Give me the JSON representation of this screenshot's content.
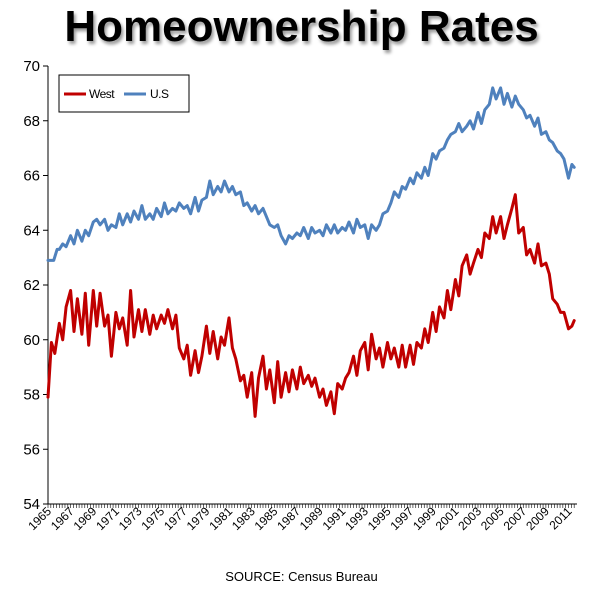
{
  "chart_data": {
    "type": "line",
    "title": "Homeownership Rates",
    "source": "SOURCE: Census Bureau",
    "ylim": [
      54,
      70
    ],
    "yticks": [
      54,
      56,
      58,
      60,
      62,
      64,
      66,
      68,
      70
    ],
    "xlim": [
      1965,
      2011.75
    ],
    "xticks": [
      1965,
      1967,
      1969,
      1971,
      1973,
      1975,
      1977,
      1979,
      1981,
      1983,
      1985,
      1987,
      1989,
      1991,
      1993,
      1995,
      1997,
      1999,
      2001,
      2003,
      2005,
      2007,
      2009,
      2011
    ],
    "grid": false,
    "legend_position": "top-left",
    "series": [
      {
        "name": "West",
        "color": "#c00000",
        "points": [
          [
            1965,
            57.9
          ],
          [
            1965.3,
            59.9
          ],
          [
            1965.6,
            59.5
          ],
          [
            1966,
            60.6
          ],
          [
            1966.3,
            60.0
          ],
          [
            1966.6,
            61.2
          ],
          [
            1967,
            61.8
          ],
          [
            1967.3,
            60.3
          ],
          [
            1967.6,
            61.5
          ],
          [
            1968,
            60.2
          ],
          [
            1968.3,
            61.7
          ],
          [
            1968.6,
            59.8
          ],
          [
            1969,
            61.8
          ],
          [
            1969.3,
            60.5
          ],
          [
            1969.6,
            61.7
          ],
          [
            1970,
            60.5
          ],
          [
            1970.3,
            60.9
          ],
          [
            1970.6,
            59.4
          ],
          [
            1971,
            61.0
          ],
          [
            1971.3,
            60.4
          ],
          [
            1971.6,
            60.8
          ],
          [
            1972,
            59.8
          ],
          [
            1972.3,
            61.8
          ],
          [
            1972.6,
            60.1
          ],
          [
            1973,
            61.1
          ],
          [
            1973.3,
            60.3
          ],
          [
            1973.6,
            61.1
          ],
          [
            1974,
            60.2
          ],
          [
            1974.3,
            60.9
          ],
          [
            1974.6,
            60.4
          ],
          [
            1975,
            60.9
          ],
          [
            1975.3,
            60.6
          ],
          [
            1975.6,
            61.1
          ],
          [
            1976,
            60.4
          ],
          [
            1976.3,
            60.9
          ],
          [
            1976.6,
            59.7
          ],
          [
            1977,
            59.3
          ],
          [
            1977.3,
            59.8
          ],
          [
            1977.6,
            58.7
          ],
          [
            1978,
            59.6
          ],
          [
            1978.3,
            58.8
          ],
          [
            1978.6,
            59.4
          ],
          [
            1979,
            60.5
          ],
          [
            1979.3,
            59.5
          ],
          [
            1979.6,
            60.3
          ],
          [
            1980,
            59.3
          ],
          [
            1980.3,
            60.1
          ],
          [
            1980.6,
            59.8
          ],
          [
            1981,
            60.8
          ],
          [
            1981.3,
            59.7
          ],
          [
            1981.6,
            59.3
          ],
          [
            1982,
            58.5
          ],
          [
            1982.3,
            58.7
          ],
          [
            1982.6,
            57.9
          ],
          [
            1983,
            58.8
          ],
          [
            1983.3,
            57.2
          ],
          [
            1983.6,
            58.6
          ],
          [
            1984,
            59.4
          ],
          [
            1984.3,
            58.2
          ],
          [
            1984.6,
            58.9
          ],
          [
            1985,
            57.7
          ],
          [
            1985.3,
            59.2
          ],
          [
            1985.6,
            57.9
          ],
          [
            1986,
            58.8
          ],
          [
            1986.3,
            58.1
          ],
          [
            1986.6,
            58.9
          ],
          [
            1987,
            58.2
          ],
          [
            1987.3,
            59.0
          ],
          [
            1987.6,
            58.4
          ],
          [
            1988,
            58.7
          ],
          [
            1988.3,
            58.3
          ],
          [
            1988.6,
            58.6
          ],
          [
            1989,
            57.9
          ],
          [
            1989.3,
            58.2
          ],
          [
            1989.6,
            57.6
          ],
          [
            1990,
            58.1
          ],
          [
            1990.3,
            57.3
          ],
          [
            1990.6,
            58.4
          ],
          [
            1991,
            58.2
          ],
          [
            1991.3,
            58.6
          ],
          [
            1991.6,
            58.8
          ],
          [
            1992,
            59.4
          ],
          [
            1992.3,
            58.7
          ],
          [
            1992.6,
            59.6
          ],
          [
            1993,
            59.9
          ],
          [
            1993.3,
            58.9
          ],
          [
            1993.6,
            60.2
          ],
          [
            1994,
            59.3
          ],
          [
            1994.3,
            59.7
          ],
          [
            1994.6,
            59.0
          ],
          [
            1995,
            59.9
          ],
          [
            1995.3,
            59.3
          ],
          [
            1995.6,
            59.7
          ],
          [
            1996,
            59.0
          ],
          [
            1996.3,
            59.8
          ],
          [
            1996.6,
            59.0
          ],
          [
            1997,
            59.8
          ],
          [
            1997.3,
            59.1
          ],
          [
            1997.6,
            59.9
          ],
          [
            1998,
            59.7
          ],
          [
            1998.3,
            60.4
          ],
          [
            1998.6,
            59.9
          ],
          [
            1999,
            61.0
          ],
          [
            1999.3,
            60.3
          ],
          [
            1999.6,
            61.2
          ],
          [
            2000,
            60.8
          ],
          [
            2000.3,
            61.8
          ],
          [
            2000.6,
            61.1
          ],
          [
            2001,
            62.2
          ],
          [
            2001.3,
            61.6
          ],
          [
            2001.6,
            62.7
          ],
          [
            2002,
            63.1
          ],
          [
            2002.3,
            62.4
          ],
          [
            2002.6,
            62.8
          ],
          [
            2003,
            63.3
          ],
          [
            2003.3,
            63.0
          ],
          [
            2003.6,
            63.9
          ],
          [
            2004,
            63.7
          ],
          [
            2004.3,
            64.5
          ],
          [
            2004.6,
            63.9
          ],
          [
            2005,
            64.5
          ],
          [
            2005.3,
            63.7
          ],
          [
            2005.6,
            64.2
          ],
          [
            2006,
            64.8
          ],
          [
            2006.3,
            65.3
          ],
          [
            2006.6,
            63.9
          ],
          [
            2007,
            64.1
          ],
          [
            2007.3,
            63.1
          ],
          [
            2007.6,
            63.3
          ],
          [
            2008,
            62.8
          ],
          [
            2008.3,
            63.5
          ],
          [
            2008.6,
            62.7
          ],
          [
            2009,
            62.8
          ],
          [
            2009.3,
            62.4
          ],
          [
            2009.6,
            61.5
          ],
          [
            2010,
            61.3
          ],
          [
            2010.3,
            61.0
          ],
          [
            2010.6,
            61.0
          ],
          [
            2011,
            60.4
          ],
          [
            2011.3,
            60.5
          ],
          [
            2011.5,
            60.7
          ]
        ]
      },
      {
        "name": "U.S",
        "color": "#4f81bd",
        "points": [
          [
            1965,
            62.9
          ],
          [
            1965.5,
            62.9
          ],
          [
            1965.8,
            63.3
          ],
          [
            1966,
            63.3
          ],
          [
            1966.3,
            63.5
          ],
          [
            1966.6,
            63.4
          ],
          [
            1967,
            63.8
          ],
          [
            1967.3,
            63.5
          ],
          [
            1967.6,
            64.0
          ],
          [
            1968,
            63.6
          ],
          [
            1968.3,
            64.0
          ],
          [
            1968.6,
            63.8
          ],
          [
            1969,
            64.3
          ],
          [
            1969.3,
            64.4
          ],
          [
            1969.6,
            64.2
          ],
          [
            1970,
            64.4
          ],
          [
            1970.3,
            64.0
          ],
          [
            1970.6,
            64.2
          ],
          [
            1971,
            64.1
          ],
          [
            1971.3,
            64.6
          ],
          [
            1971.6,
            64.2
          ],
          [
            1972,
            64.6
          ],
          [
            1972.3,
            64.3
          ],
          [
            1972.6,
            64.7
          ],
          [
            1973,
            64.4
          ],
          [
            1973.3,
            64.9
          ],
          [
            1973.6,
            64.4
          ],
          [
            1974,
            64.6
          ],
          [
            1974.3,
            64.4
          ],
          [
            1974.6,
            64.8
          ],
          [
            1975,
            64.5
          ],
          [
            1975.3,
            65.0
          ],
          [
            1975.6,
            64.6
          ],
          [
            1976,
            64.8
          ],
          [
            1976.3,
            64.7
          ],
          [
            1976.6,
            65.0
          ],
          [
            1977,
            64.8
          ],
          [
            1977.3,
            64.9
          ],
          [
            1977.6,
            64.6
          ],
          [
            1978,
            65.2
          ],
          [
            1978.3,
            64.7
          ],
          [
            1978.6,
            65.1
          ],
          [
            1979,
            65.2
          ],
          [
            1979.3,
            65.8
          ],
          [
            1979.6,
            65.3
          ],
          [
            1980,
            65.6
          ],
          [
            1980.3,
            65.4
          ],
          [
            1980.6,
            65.8
          ],
          [
            1981,
            65.4
          ],
          [
            1981.3,
            65.6
          ],
          [
            1981.6,
            65.3
          ],
          [
            1982,
            65.4
          ],
          [
            1982.3,
            64.9
          ],
          [
            1982.6,
            65.0
          ],
          [
            1983,
            64.7
          ],
          [
            1983.3,
            64.9
          ],
          [
            1983.6,
            64.6
          ],
          [
            1984,
            64.8
          ],
          [
            1984.3,
            64.5
          ],
          [
            1984.6,
            64.2
          ],
          [
            1985,
            64.1
          ],
          [
            1985.3,
            64.2
          ],
          [
            1985.6,
            63.8
          ],
          [
            1986,
            63.5
          ],
          [
            1986.3,
            63.8
          ],
          [
            1986.6,
            63.7
          ],
          [
            1987,
            63.9
          ],
          [
            1987.3,
            63.8
          ],
          [
            1987.6,
            64.1
          ],
          [
            1988,
            63.7
          ],
          [
            1988.3,
            64.1
          ],
          [
            1988.6,
            63.9
          ],
          [
            1989,
            64.0
          ],
          [
            1989.3,
            63.8
          ],
          [
            1989.6,
            64.2
          ],
          [
            1990,
            63.9
          ],
          [
            1990.3,
            64.2
          ],
          [
            1990.6,
            63.9
          ],
          [
            1991,
            64.1
          ],
          [
            1991.3,
            64.0
          ],
          [
            1991.6,
            64.3
          ],
          [
            1992,
            63.9
          ],
          [
            1992.3,
            64.4
          ],
          [
            1992.6,
            64.1
          ],
          [
            1993,
            64.2
          ],
          [
            1993.3,
            63.7
          ],
          [
            1993.6,
            64.2
          ],
          [
            1994,
            64.0
          ],
          [
            1994.3,
            64.2
          ],
          [
            1994.6,
            64.6
          ],
          [
            1995,
            64.7
          ],
          [
            1995.3,
            65.0
          ],
          [
            1995.6,
            65.4
          ],
          [
            1996,
            65.2
          ],
          [
            1996.3,
            65.6
          ],
          [
            1996.6,
            65.5
          ],
          [
            1997,
            65.9
          ],
          [
            1997.3,
            65.7
          ],
          [
            1997.6,
            66.1
          ],
          [
            1998,
            65.9
          ],
          [
            1998.3,
            66.3
          ],
          [
            1998.6,
            66.0
          ],
          [
            1999,
            66.8
          ],
          [
            1999.3,
            66.6
          ],
          [
            1999.6,
            66.9
          ],
          [
            2000,
            67.0
          ],
          [
            2000.3,
            67.3
          ],
          [
            2000.6,
            67.5
          ],
          [
            2001,
            67.6
          ],
          [
            2001.3,
            67.9
          ],
          [
            2001.6,
            67.6
          ],
          [
            2002,
            67.8
          ],
          [
            2002.3,
            68.0
          ],
          [
            2002.6,
            67.7
          ],
          [
            2003,
            68.3
          ],
          [
            2003.3,
            67.9
          ],
          [
            2003.6,
            68.4
          ],
          [
            2004,
            68.6
          ],
          [
            2004.3,
            69.2
          ],
          [
            2004.6,
            68.8
          ],
          [
            2005,
            69.2
          ],
          [
            2005.3,
            68.6
          ],
          [
            2005.6,
            69.0
          ],
          [
            2006,
            68.5
          ],
          [
            2006.3,
            68.9
          ],
          [
            2006.6,
            68.6
          ],
          [
            2007,
            68.4
          ],
          [
            2007.3,
            68.1
          ],
          [
            2007.6,
            68.2
          ],
          [
            2008,
            67.8
          ],
          [
            2008.3,
            68.1
          ],
          [
            2008.6,
            67.5
          ],
          [
            2009,
            67.6
          ],
          [
            2009.3,
            67.3
          ],
          [
            2009.6,
            67.2
          ],
          [
            2010,
            66.9
          ],
          [
            2010.3,
            66.8
          ],
          [
            2010.6,
            66.6
          ],
          [
            2011,
            65.9
          ],
          [
            2011.3,
            66.4
          ],
          [
            2011.5,
            66.3
          ]
        ]
      }
    ]
  }
}
